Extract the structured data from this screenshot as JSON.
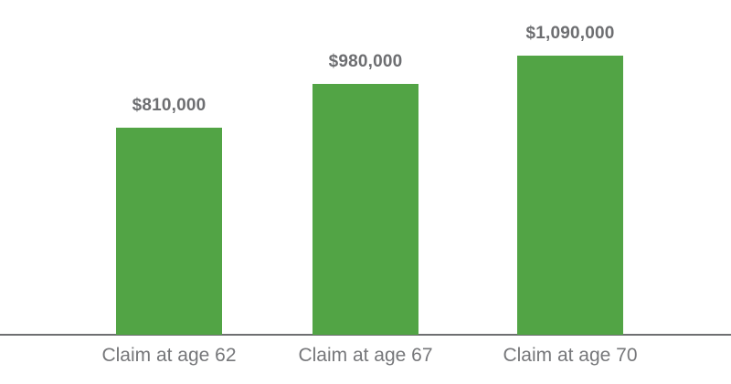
{
  "chart_data": {
    "type": "bar",
    "categories": [
      "Claim at age 62",
      "Claim at age 67",
      "Claim at age 70"
    ],
    "values": [
      810000,
      980000,
      1090000
    ],
    "data_labels": [
      "$810,000",
      "$980,000",
      "$1,090,000"
    ],
    "title": "",
    "xlabel": "",
    "ylabel": "",
    "ylim": [
      0,
      1090000
    ],
    "grid": false,
    "legend": false,
    "baseline_axis": true,
    "colors": {
      "bar": "#52a445",
      "value_label": "#6d6e71",
      "category_label": "#76777a",
      "axis_line": "#6e6f71",
      "background": "#ffffff"
    }
  }
}
